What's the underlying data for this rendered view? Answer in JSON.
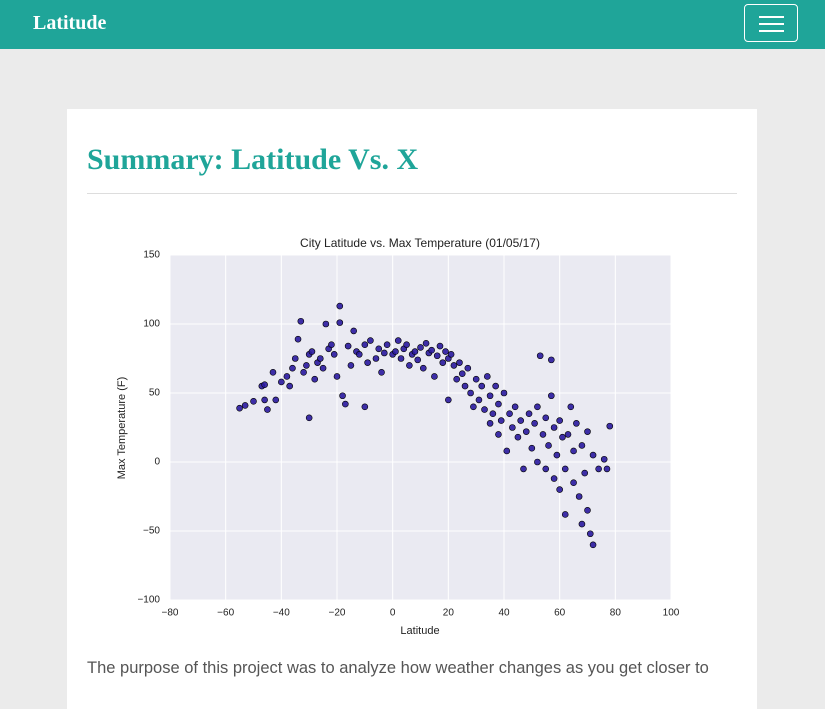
{
  "navbar": {
    "brand": "Latitude"
  },
  "heading": "Summary: Latitude Vs. X",
  "paragraph": "The purpose of this project was to analyze how weather changes as you get closer to",
  "chart_data": {
    "type": "scatter",
    "title": "City Latitude vs. Max Temperature (01/05/17)",
    "x_label": "Latitude",
    "y_label": "Max Temperature (F)",
    "color": "#2a1a9e",
    "grid": true,
    "xlim": [
      -80,
      100
    ],
    "ylim": [
      -100,
      150
    ],
    "xticks": [
      {
        "value": -80,
        "label": "−80"
      },
      {
        "value": -60,
        "label": "−60"
      },
      {
        "value": -40,
        "label": "−40"
      },
      {
        "value": -20,
        "label": "−20"
      },
      0,
      20,
      40,
      60,
      80,
      100
    ],
    "yticks": [
      {
        "value": -100,
        "label": "−100"
      },
      {
        "value": -50,
        "label": "−50"
      },
      0,
      50,
      100,
      150
    ],
    "x": [
      -55,
      -53,
      -50,
      -47,
      -46,
      -46,
      -45,
      -43,
      -42,
      -40,
      -38,
      -37,
      -36,
      -35,
      -34,
      -33,
      -32,
      -31,
      -30,
      -30,
      -29,
      -28,
      -27,
      -26,
      -25,
      -24,
      -23,
      -22,
      -21,
      -20,
      -19,
      -19,
      -18,
      -17,
      -16,
      -15,
      -14,
      -13,
      -12,
      -10,
      -10,
      -9,
      -8,
      -6,
      -5,
      -4,
      -3,
      -2,
      0,
      1,
      2,
      3,
      4,
      5,
      6,
      7,
      8,
      9,
      10,
      11,
      12,
      13,
      14,
      15,
      16,
      17,
      18,
      19,
      20,
      20,
      21,
      22,
      23,
      24,
      25,
      26,
      27,
      28,
      29,
      30,
      31,
      32,
      33,
      34,
      35,
      35,
      36,
      37,
      38,
      38,
      39,
      40,
      41,
      42,
      43,
      44,
      45,
      46,
      47,
      48,
      49,
      50,
      51,
      52,
      52,
      53,
      54,
      55,
      55,
      56,
      57,
      57,
      58,
      58,
      59,
      60,
      60,
      61,
      62,
      62,
      63,
      64,
      65,
      65,
      66,
      67,
      68,
      68,
      69,
      70,
      70,
      71,
      72,
      72,
      74,
      76,
      77,
      78
    ],
    "values": [
      39,
      41,
      44,
      55,
      56,
      45,
      38,
      65,
      45,
      58,
      62,
      55,
      68,
      75,
      89,
      102,
      65,
      70,
      78,
      32,
      80,
      60,
      72,
      75,
      68,
      100,
      82,
      85,
      78,
      62,
      113,
      101,
      48,
      42,
      84,
      70,
      95,
      80,
      78,
      40,
      85,
      72,
      88,
      75,
      82,
      65,
      79,
      85,
      78,
      80,
      88,
      75,
      82,
      85,
      70,
      78,
      80,
      74,
      83,
      68,
      86,
      79,
      81,
      62,
      77,
      84,
      72,
      80,
      45,
      75,
      78,
      70,
      60,
      72,
      64,
      55,
      68,
      50,
      40,
      60,
      45,
      55,
      38,
      62,
      28,
      48,
      35,
      55,
      20,
      42,
      30,
      50,
      8,
      35,
      25,
      40,
      18,
      30,
      -5,
      22,
      35,
      10,
      28,
      0,
      40,
      77,
      20,
      -5,
      32,
      12,
      74,
      48,
      -12,
      25,
      5,
      -20,
      30,
      18,
      -38,
      -5,
      20,
      40,
      -15,
      8,
      28,
      -25,
      -45,
      12,
      -8,
      -35,
      22,
      -52,
      -60,
      5,
      -5,
      2,
      -5,
      26
    ]
  }
}
